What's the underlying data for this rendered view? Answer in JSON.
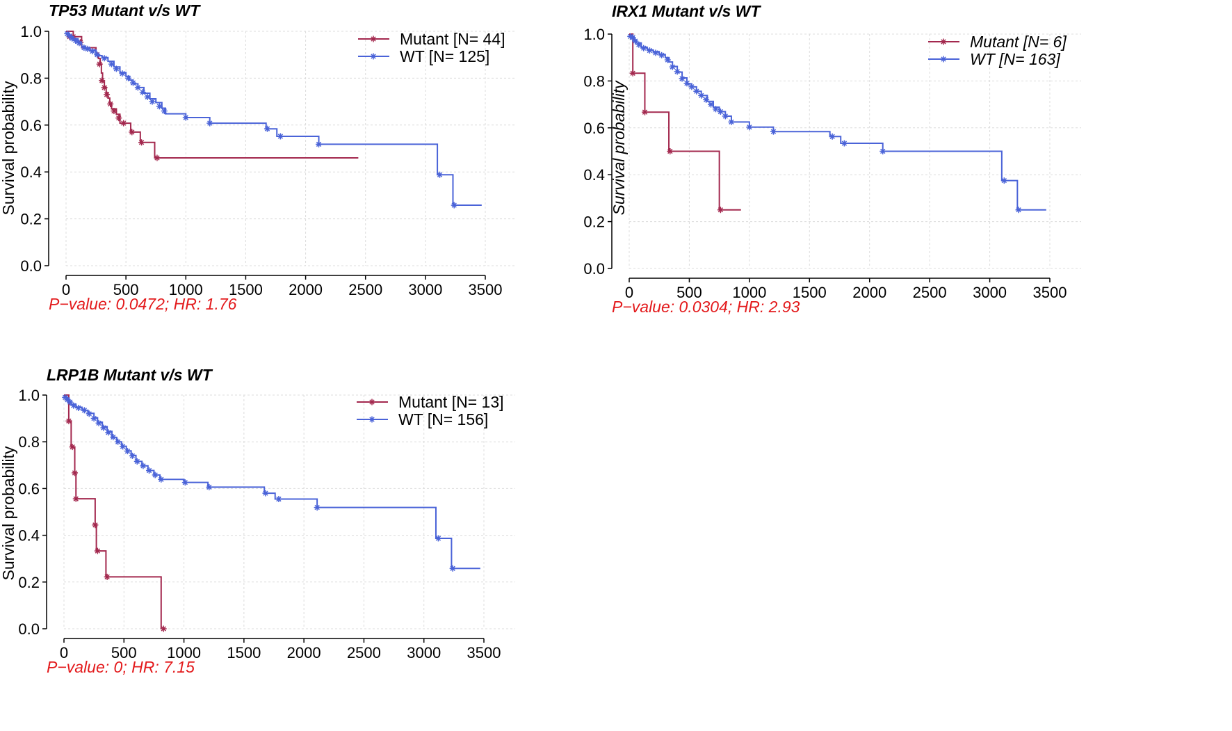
{
  "chart_data": [
    {
      "type": "line",
      "subtype": "kaplan-meier",
      "title": "TP53 Mutant v/s WT",
      "ylabel": "Survival probability",
      "xlabel": "",
      "xlim": [
        0,
        3500
      ],
      "ylim": [
        0,
        1
      ],
      "xticks": [
        "0",
        "500",
        "1000",
        "1500",
        "2000",
        "2500",
        "3000",
        "3500"
      ],
      "yticks": [
        "0.0",
        "0.2",
        "0.4",
        "0.6",
        "0.8",
        "1.0"
      ],
      "legend_italic": false,
      "ylabel_italic": false,
      "grid": true,
      "legend": "top-right",
      "annotation": "P−value: 0.0472; HR: 1.76",
      "series": [
        {
          "name": "Mutant [N= 44]",
          "color": "#a3284e",
          "points": [
            [
              0,
              1.0
            ],
            [
              60,
              0.977
            ],
            [
              130,
              0.93
            ],
            [
              250,
              0.907
            ],
            [
              270,
              0.884
            ],
            [
              285,
              0.86
            ],
            [
              295,
              0.822
            ],
            [
              305,
              0.784
            ],
            [
              320,
              0.761
            ],
            [
              335,
              0.738
            ],
            [
              350,
              0.715
            ],
            [
              365,
              0.692
            ],
            [
              380,
              0.669
            ],
            [
              420,
              0.646
            ],
            [
              450,
              0.608
            ],
            [
              540,
              0.57
            ],
            [
              620,
              0.526
            ],
            [
              740,
              0.46
            ],
            [
              2440,
              0.46
            ]
          ],
          "censors": [
            [
              30,
              0.977
            ],
            [
              60,
              0.977
            ],
            [
              120,
              0.953
            ],
            [
              280,
              0.86
            ],
            [
              300,
              0.79
            ],
            [
              320,
              0.76
            ],
            [
              340,
              0.73
            ],
            [
              370,
              0.69
            ],
            [
              400,
              0.66
            ],
            [
              440,
              0.63
            ],
            [
              480,
              0.608
            ],
            [
              550,
              0.57
            ],
            [
              630,
              0.526
            ],
            [
              760,
              0.46
            ]
          ]
        },
        {
          "name": "WT [N= 125]",
          "color": "#4a63d8",
          "points": [
            [
              0,
              0.992
            ],
            [
              20,
              0.984
            ],
            [
              40,
              0.976
            ],
            [
              60,
              0.968
            ],
            [
              100,
              0.952
            ],
            [
              130,
              0.936
            ],
            [
              160,
              0.928
            ],
            [
              200,
              0.92
            ],
            [
              250,
              0.896
            ],
            [
              300,
              0.888
            ],
            [
              350,
              0.872
            ],
            [
              400,
              0.848
            ],
            [
              450,
              0.824
            ],
            [
              500,
              0.808
            ],
            [
              530,
              0.792
            ],
            [
              560,
              0.776
            ],
            [
              600,
              0.76
            ],
            [
              650,
              0.736
            ],
            [
              700,
              0.712
            ],
            [
              750,
              0.696
            ],
            [
              800,
              0.672
            ],
            [
              830,
              0.648
            ],
            [
              1000,
              0.632
            ],
            [
              1200,
              0.608
            ],
            [
              1670,
              0.584
            ],
            [
              1760,
              0.552
            ],
            [
              2110,
              0.518
            ],
            [
              3100,
              0.388
            ],
            [
              3230,
              0.258
            ],
            [
              3470,
              0.258
            ]
          ],
          "censors": [
            [
              10,
              0.99
            ],
            [
              30,
              0.98
            ],
            [
              50,
              0.97
            ],
            [
              80,
              0.96
            ],
            [
              110,
              0.95
            ],
            [
              150,
              0.93
            ],
            [
              180,
              0.925
            ],
            [
              220,
              0.915
            ],
            [
              260,
              0.9
            ],
            [
              320,
              0.885
            ],
            [
              380,
              0.86
            ],
            [
              420,
              0.84
            ],
            [
              470,
              0.82
            ],
            [
              520,
              0.8
            ],
            [
              560,
              0.78
            ],
            [
              600,
              0.76
            ],
            [
              640,
              0.74
            ],
            [
              680,
              0.72
            ],
            [
              720,
              0.7
            ],
            [
              780,
              0.68
            ],
            [
              820,
              0.66
            ],
            [
              1000,
              0.632
            ],
            [
              1200,
              0.608
            ],
            [
              1680,
              0.584
            ],
            [
              1790,
              0.552
            ],
            [
              2110,
              0.518
            ],
            [
              3120,
              0.388
            ],
            [
              3240,
              0.258
            ]
          ]
        }
      ]
    },
    {
      "type": "line",
      "subtype": "kaplan-meier",
      "title": "IRX1 Mutant v/s WT",
      "ylabel": "Survival probability",
      "xlabel": "",
      "xlim": [
        0,
        3500
      ],
      "ylim": [
        0,
        1
      ],
      "xticks": [
        "0",
        "500",
        "1000",
        "1500",
        "2000",
        "2500",
        "3000",
        "3500"
      ],
      "yticks": [
        "0.0",
        "0.2",
        "0.4",
        "0.6",
        "0.8",
        "1.0"
      ],
      "legend_italic": true,
      "ylabel_italic": true,
      "grid": true,
      "legend": "top-right",
      "annotation": "P−value: 0.0304; HR: 2.93",
      "series": [
        {
          "name": "Mutant [N= 6]",
          "color": "#a3284e",
          "points": [
            [
              0,
              1.0
            ],
            [
              30,
              0.833
            ],
            [
              130,
              0.667
            ],
            [
              330,
              0.5
            ],
            [
              750,
              0.25
            ],
            [
              930,
              0.25
            ]
          ],
          "censors": [
            [
              30,
              0.833
            ],
            [
              130,
              0.667
            ],
            [
              340,
              0.5
            ],
            [
              760,
              0.25
            ]
          ]
        },
        {
          "name": "WT [N= 163]",
          "color": "#4a63d8",
          "points": [
            [
              0,
              0.994
            ],
            [
              20,
              0.988
            ],
            [
              40,
              0.975
            ],
            [
              60,
              0.962
            ],
            [
              100,
              0.944
            ],
            [
              150,
              0.932
            ],
            [
              200,
              0.925
            ],
            [
              250,
              0.913
            ],
            [
              300,
              0.9
            ],
            [
              330,
              0.881
            ],
            [
              360,
              0.862
            ],
            [
              400,
              0.838
            ],
            [
              440,
              0.813
            ],
            [
              480,
              0.788
            ],
            [
              520,
              0.775
            ],
            [
              560,
              0.756
            ],
            [
              600,
              0.738
            ],
            [
              650,
              0.713
            ],
            [
              700,
              0.688
            ],
            [
              750,
              0.669
            ],
            [
              800,
              0.65
            ],
            [
              850,
              0.625
            ],
            [
              1000,
              0.603
            ],
            [
              1200,
              0.584
            ],
            [
              1670,
              0.563
            ],
            [
              1760,
              0.534
            ],
            [
              2110,
              0.5
            ],
            [
              3100,
              0.375
            ],
            [
              3230,
              0.25
            ],
            [
              3470,
              0.25
            ]
          ],
          "censors": [
            [
              10,
              0.99
            ],
            [
              30,
              0.985
            ],
            [
              50,
              0.97
            ],
            [
              80,
              0.955
            ],
            [
              120,
              0.94
            ],
            [
              170,
              0.93
            ],
            [
              220,
              0.92
            ],
            [
              270,
              0.91
            ],
            [
              320,
              0.89
            ],
            [
              360,
              0.86
            ],
            [
              400,
              0.84
            ],
            [
              440,
              0.81
            ],
            [
              480,
              0.79
            ],
            [
              520,
              0.775
            ],
            [
              560,
              0.756
            ],
            [
              600,
              0.738
            ],
            [
              640,
              0.72
            ],
            [
              680,
              0.7
            ],
            [
              720,
              0.68
            ],
            [
              760,
              0.669
            ],
            [
              800,
              0.65
            ],
            [
              850,
              0.625
            ],
            [
              1000,
              0.603
            ],
            [
              1200,
              0.584
            ],
            [
              1690,
              0.563
            ],
            [
              1790,
              0.534
            ],
            [
              2110,
              0.5
            ],
            [
              3120,
              0.375
            ],
            [
              3240,
              0.25
            ]
          ]
        }
      ]
    },
    {
      "type": "line",
      "subtype": "kaplan-meier",
      "title": "LRP1B Mutant v/s WT",
      "ylabel": "Survival probability",
      "xlabel": "",
      "xlim": [
        0,
        3500
      ],
      "ylim": [
        0,
        1
      ],
      "xticks": [
        "0",
        "500",
        "1000",
        "1500",
        "2000",
        "2500",
        "3000",
        "3500"
      ],
      "yticks": [
        "0.0",
        "0.2",
        "0.4",
        "0.6",
        "0.8",
        "1.0"
      ],
      "legend_italic": false,
      "ylabel_italic": false,
      "grid": true,
      "legend": "top-right",
      "annotation": "P−value: 0; HR: 7.15",
      "series": [
        {
          "name": "Mutant [N= 13]",
          "color": "#a3284e",
          "points": [
            [
              0,
              1.0
            ],
            [
              40,
              0.889
            ],
            [
              60,
              0.778
            ],
            [
              90,
              0.667
            ],
            [
              100,
              0.556
            ],
            [
              260,
              0.444
            ],
            [
              270,
              0.333
            ],
            [
              350,
              0.222
            ],
            [
              810,
              0.0
            ]
          ],
          "censors": [
            [
              40,
              0.889
            ],
            [
              70,
              0.778
            ],
            [
              90,
              0.667
            ],
            [
              100,
              0.556
            ],
            [
              260,
              0.444
            ],
            [
              280,
              0.333
            ],
            [
              360,
              0.222
            ],
            [
              830,
              0.0
            ]
          ]
        },
        {
          "name": "WT [N= 156]",
          "color": "#4a63d8",
          "points": [
            [
              0,
              0.994
            ],
            [
              20,
              0.987
            ],
            [
              40,
              0.974
            ],
            [
              60,
              0.961
            ],
            [
              100,
              0.948
            ],
            [
              150,
              0.935
            ],
            [
              200,
              0.922
            ],
            [
              250,
              0.903
            ],
            [
              280,
              0.884
            ],
            [
              320,
              0.865
            ],
            [
              360,
              0.845
            ],
            [
              400,
              0.819
            ],
            [
              440,
              0.8
            ],
            [
              480,
              0.781
            ],
            [
              520,
              0.761
            ],
            [
              560,
              0.742
            ],
            [
              600,
              0.716
            ],
            [
              650,
              0.697
            ],
            [
              700,
              0.677
            ],
            [
              750,
              0.658
            ],
            [
              800,
              0.639
            ],
            [
              1000,
              0.626
            ],
            [
              1200,
              0.606
            ],
            [
              1670,
              0.58
            ],
            [
              1760,
              0.555
            ],
            [
              2110,
              0.519
            ],
            [
              3100,
              0.387
            ],
            [
              3230,
              0.258
            ],
            [
              3470,
              0.258
            ]
          ],
          "censors": [
            [
              10,
              0.99
            ],
            [
              30,
              0.98
            ],
            [
              50,
              0.97
            ],
            [
              80,
              0.955
            ],
            [
              120,
              0.945
            ],
            [
              170,
              0.935
            ],
            [
              210,
              0.92
            ],
            [
              250,
              0.9
            ],
            [
              290,
              0.88
            ],
            [
              330,
              0.86
            ],
            [
              370,
              0.84
            ],
            [
              410,
              0.82
            ],
            [
              450,
              0.8
            ],
            [
              490,
              0.78
            ],
            [
              530,
              0.76
            ],
            [
              570,
              0.74
            ],
            [
              610,
              0.716
            ],
            [
              660,
              0.697
            ],
            [
              710,
              0.677
            ],
            [
              760,
              0.658
            ],
            [
              810,
              0.639
            ],
            [
              1010,
              0.626
            ],
            [
              1210,
              0.606
            ],
            [
              1680,
              0.58
            ],
            [
              1790,
              0.555
            ],
            [
              2110,
              0.519
            ],
            [
              3120,
              0.387
            ],
            [
              3240,
              0.258
            ]
          ]
        }
      ]
    }
  ]
}
